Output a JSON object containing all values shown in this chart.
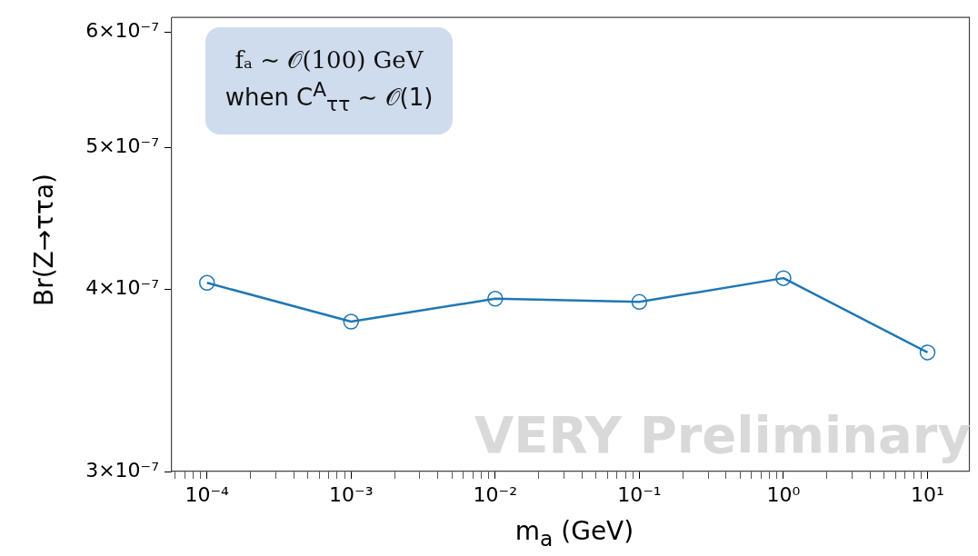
{
  "chart_data": {
    "type": "line",
    "xlabel": "m$_{a}$ (GeV)",
    "ylabel": "Br(Z→ττa)",
    "log": "xy",
    "marker": "circle",
    "legend": false,
    "grid": false,
    "x": [
      0.0001,
      0.001,
      0.01,
      0.1,
      1,
      10
    ],
    "series": [
      {
        "color": "#1f77b4",
        "values": [
          4.04e-07,
          3.8e-07,
          3.94e-07,
          3.92e-07,
          4.07e-07,
          3.62e-07
        ]
      }
    ],
    "xlim": [
      5.7e-05,
      19.5
    ],
    "xticks": [
      {
        "value": 6e-05,
        "label": null
      },
      {
        "value": 7e-05,
        "label": null
      },
      {
        "value": 8e-05,
        "label": null
      },
      {
        "value": 9e-05,
        "label": null
      },
      {
        "value": 0.0001,
        "label": "10⁻⁴"
      },
      {
        "value": 0.0002,
        "label": null
      },
      {
        "value": 0.0003,
        "label": null
      },
      {
        "value": 0.0004,
        "label": null
      },
      {
        "value": 0.0005,
        "label": null
      },
      {
        "value": 0.0006,
        "label": null
      },
      {
        "value": 0.0007,
        "label": null
      },
      {
        "value": 0.0008,
        "label": null
      },
      {
        "value": 0.0009,
        "label": null
      },
      {
        "value": 0.001,
        "label": "10⁻³"
      },
      {
        "value": 0.002,
        "label": null
      },
      {
        "value": 0.003,
        "label": null
      },
      {
        "value": 0.004,
        "label": null
      },
      {
        "value": 0.005,
        "label": null
      },
      {
        "value": 0.006,
        "label": null
      },
      {
        "value": 0.007,
        "label": null
      },
      {
        "value": 0.008,
        "label": null
      },
      {
        "value": 0.009,
        "label": null
      },
      {
        "value": 0.01,
        "label": "10⁻²"
      },
      {
        "value": 0.02,
        "label": null
      },
      {
        "value": 0.03,
        "label": null
      },
      {
        "value": 0.04,
        "label": null
      },
      {
        "value": 0.05,
        "label": null
      },
      {
        "value": 0.06,
        "label": null
      },
      {
        "value": 0.07,
        "label": null
      },
      {
        "value": 0.08,
        "label": null
      },
      {
        "value": 0.09,
        "label": null
      },
      {
        "value": 0.1,
        "label": "10⁻¹"
      },
      {
        "value": 0.2,
        "label": null
      },
      {
        "value": 0.3,
        "label": null
      },
      {
        "value": 0.4,
        "label": null
      },
      {
        "value": 0.5,
        "label": null
      },
      {
        "value": 0.6,
        "label": null
      },
      {
        "value": 0.7,
        "label": null
      },
      {
        "value": 0.8,
        "label": null
      },
      {
        "value": 0.9,
        "label": null
      },
      {
        "value": 1,
        "label": "10⁰"
      },
      {
        "value": 2,
        "label": null
      },
      {
        "value": 3,
        "label": null
      },
      {
        "value": 4,
        "label": null
      },
      {
        "value": 5,
        "label": null
      },
      {
        "value": 6,
        "label": null
      },
      {
        "value": 7,
        "label": null
      },
      {
        "value": 8,
        "label": null
      },
      {
        "value": 9,
        "label": null
      },
      {
        "value": 10,
        "label": "10¹"
      }
    ],
    "ylim": [
      3e-07,
      6.14e-07
    ],
    "yticks": [
      {
        "value": 3e-07,
        "label": "3×10⁻⁷"
      },
      {
        "value": 4e-07,
        "label": "4×10⁻⁷"
      },
      {
        "value": 5e-07,
        "label": "5×10⁻⁷"
      },
      {
        "value": 6e-07,
        "label": "6×10⁻⁷"
      }
    ],
    "annotations": [
      "fₐ ∼ 𝒪(100) GeV",
      "when C$^{A}$$_{ττ}$ ∼ 𝒪(1)",
      "VERY Preliminary"
    ]
  }
}
